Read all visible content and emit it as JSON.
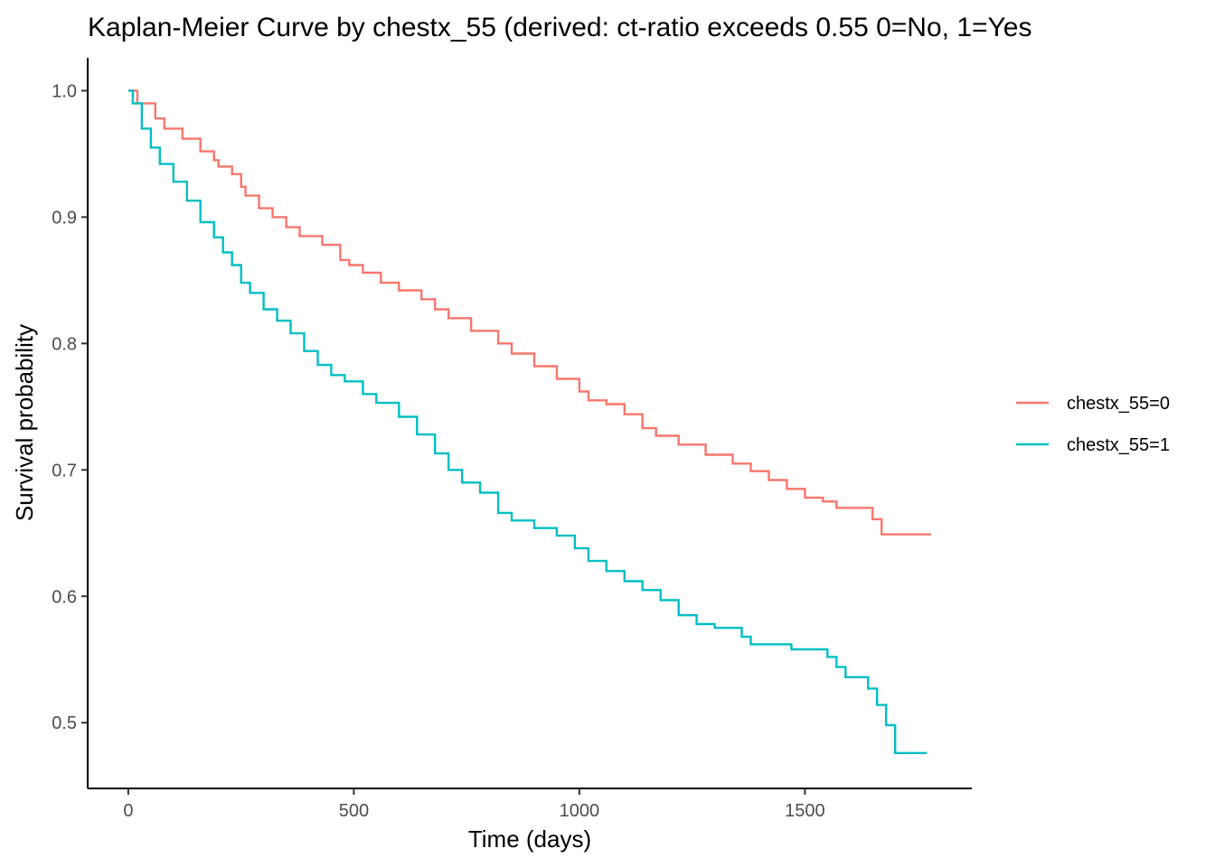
{
  "chart_data": {
    "type": "line",
    "subtype": "kaplan-meier-step",
    "title": "Kaplan-Meier Curve by chestx_55 (derived: ct-ratio exceeds 0.55  0=No, 1=Yes",
    "xlabel": "Time (days)",
    "ylabel": "Survival probability",
    "xlim": [
      -90,
      1870
    ],
    "ylim": [
      0.448,
      1.026
    ],
    "x_ticks": [
      0,
      500,
      1000,
      1500
    ],
    "x_tick_labels": [
      "0",
      "500",
      "1000",
      "1500"
    ],
    "y_ticks": [
      0.5,
      0.6,
      0.7,
      0.8,
      0.9,
      1.0
    ],
    "y_tick_labels": [
      "0.5",
      "0.6",
      "0.7",
      "0.8",
      "0.9",
      "1.0"
    ],
    "grid": false,
    "legend_position": "right",
    "series": [
      {
        "name": "chestx_55=0",
        "color": "#F8766D",
        "points": [
          [
            0,
            1.0
          ],
          [
            20,
            0.99
          ],
          [
            60,
            0.978
          ],
          [
            80,
            0.97
          ],
          [
            120,
            0.962
          ],
          [
            160,
            0.952
          ],
          [
            190,
            0.945
          ],
          [
            200,
            0.94
          ],
          [
            230,
            0.934
          ],
          [
            250,
            0.924
          ],
          [
            260,
            0.917
          ],
          [
            290,
            0.907
          ],
          [
            320,
            0.9
          ],
          [
            350,
            0.892
          ],
          [
            380,
            0.885
          ],
          [
            430,
            0.878
          ],
          [
            470,
            0.866
          ],
          [
            490,
            0.862
          ],
          [
            520,
            0.856
          ],
          [
            560,
            0.848
          ],
          [
            600,
            0.842
          ],
          [
            650,
            0.835
          ],
          [
            680,
            0.827
          ],
          [
            710,
            0.82
          ],
          [
            760,
            0.81
          ],
          [
            820,
            0.8
          ],
          [
            850,
            0.792
          ],
          [
            900,
            0.782
          ],
          [
            950,
            0.772
          ],
          [
            1000,
            0.762
          ],
          [
            1020,
            0.755
          ],
          [
            1060,
            0.752
          ],
          [
            1100,
            0.744
          ],
          [
            1140,
            0.733
          ],
          [
            1170,
            0.727
          ],
          [
            1220,
            0.72
          ],
          [
            1280,
            0.712
          ],
          [
            1340,
            0.705
          ],
          [
            1380,
            0.699
          ],
          [
            1420,
            0.692
          ],
          [
            1460,
            0.685
          ],
          [
            1500,
            0.678
          ],
          [
            1540,
            0.675
          ],
          [
            1570,
            0.67
          ],
          [
            1650,
            0.661
          ],
          [
            1670,
            0.649
          ],
          [
            1780,
            0.649
          ]
        ]
      },
      {
        "name": "chestx_55=1",
        "color": "#00BFC4",
        "points": [
          [
            0,
            1.0
          ],
          [
            10,
            0.99
          ],
          [
            30,
            0.97
          ],
          [
            50,
            0.955
          ],
          [
            70,
            0.942
          ],
          [
            100,
            0.928
          ],
          [
            130,
            0.913
          ],
          [
            160,
            0.896
          ],
          [
            190,
            0.884
          ],
          [
            210,
            0.872
          ],
          [
            230,
            0.862
          ],
          [
            250,
            0.848
          ],
          [
            270,
            0.84
          ],
          [
            300,
            0.827
          ],
          [
            330,
            0.818
          ],
          [
            360,
            0.808
          ],
          [
            390,
            0.794
          ],
          [
            420,
            0.783
          ],
          [
            450,
            0.775
          ],
          [
            480,
            0.77
          ],
          [
            520,
            0.76
          ],
          [
            550,
            0.753
          ],
          [
            600,
            0.742
          ],
          [
            640,
            0.728
          ],
          [
            680,
            0.713
          ],
          [
            710,
            0.7
          ],
          [
            740,
            0.69
          ],
          [
            780,
            0.682
          ],
          [
            820,
            0.666
          ],
          [
            850,
            0.66
          ],
          [
            900,
            0.654
          ],
          [
            950,
            0.648
          ],
          [
            990,
            0.638
          ],
          [
            1020,
            0.628
          ],
          [
            1060,
            0.62
          ],
          [
            1100,
            0.612
          ],
          [
            1140,
            0.605
          ],
          [
            1180,
            0.597
          ],
          [
            1220,
            0.585
          ],
          [
            1260,
            0.578
          ],
          [
            1300,
            0.575
          ],
          [
            1360,
            0.568
          ],
          [
            1380,
            0.562
          ],
          [
            1470,
            0.558
          ],
          [
            1550,
            0.552
          ],
          [
            1570,
            0.544
          ],
          [
            1590,
            0.536
          ],
          [
            1640,
            0.527
          ],
          [
            1660,
            0.514
          ],
          [
            1680,
            0.498
          ],
          [
            1700,
            0.476
          ],
          [
            1770,
            0.476
          ]
        ]
      }
    ]
  }
}
